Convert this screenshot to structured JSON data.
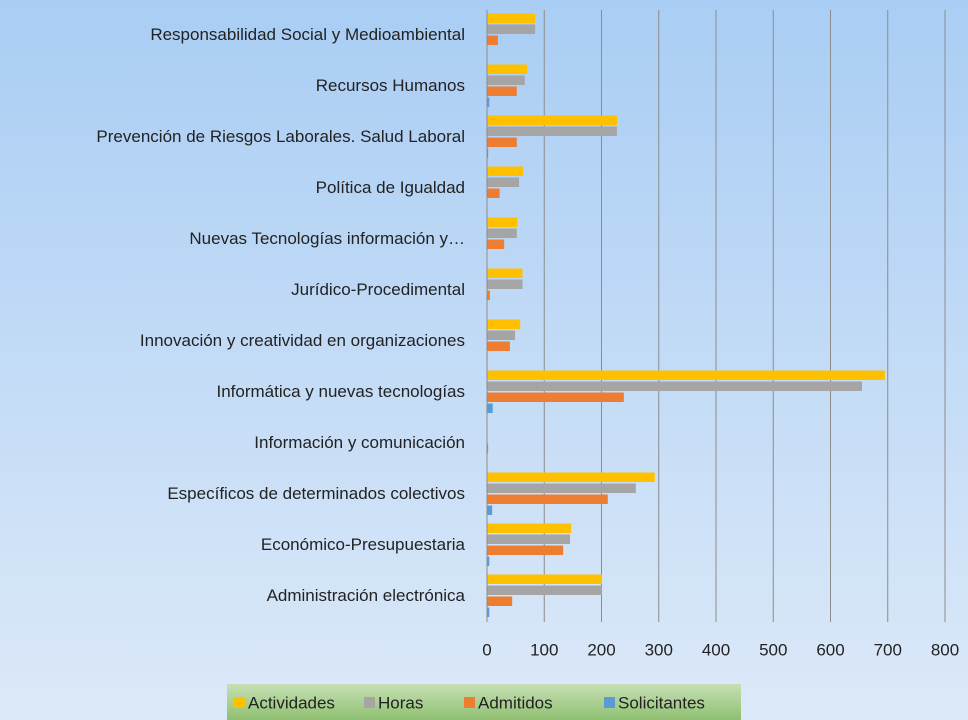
{
  "chart_data": {
    "type": "bar",
    "orientation": "horizontal",
    "categories": [
      "Administración electrónica",
      "Económico-Presupuestaria",
      "Específicos de determinados colectivos",
      "Información y comunicación",
      "Informática y nuevas tecnologías",
      "Innovación y creatividad en organizaciones",
      "Jurídico-Procedimental",
      "Nuevas Tecnologías información y…",
      "Política de Igualdad",
      "Prevención de Riesgos Laborales. Salud Laboral",
      "Recursos Humanos",
      "Responsabilidad Social y Medioambiental"
    ],
    "series": [
      {
        "name": "Actividades",
        "color": "#ffc000",
        "values": [
          201,
          147,
          293,
          0,
          695,
          58,
          62,
          53,
          63,
          227,
          70,
          84
        ]
      },
      {
        "name": "Horas",
        "color": "#a5a5a5",
        "values": [
          201,
          145,
          260,
          0,
          655,
          49,
          62,
          52,
          56,
          227,
          66,
          84
        ]
      },
      {
        "name": "Admitidos",
        "color": "#ed7d31",
        "values": [
          44,
          133,
          211,
          2,
          239,
          40,
          5,
          30,
          22,
          52,
          52,
          19
        ]
      },
      {
        "name": "Solicitantes",
        "color": "#5b9bd5",
        "values": [
          4,
          4,
          9,
          0,
          10,
          1,
          0,
          0,
          0,
          2,
          4,
          0
        ]
      }
    ],
    "xlim": [
      0,
      800
    ],
    "xticks": [
      0,
      100,
      200,
      300,
      400,
      500,
      600,
      700,
      800
    ],
    "grid": true,
    "legend": "bottom"
  }
}
